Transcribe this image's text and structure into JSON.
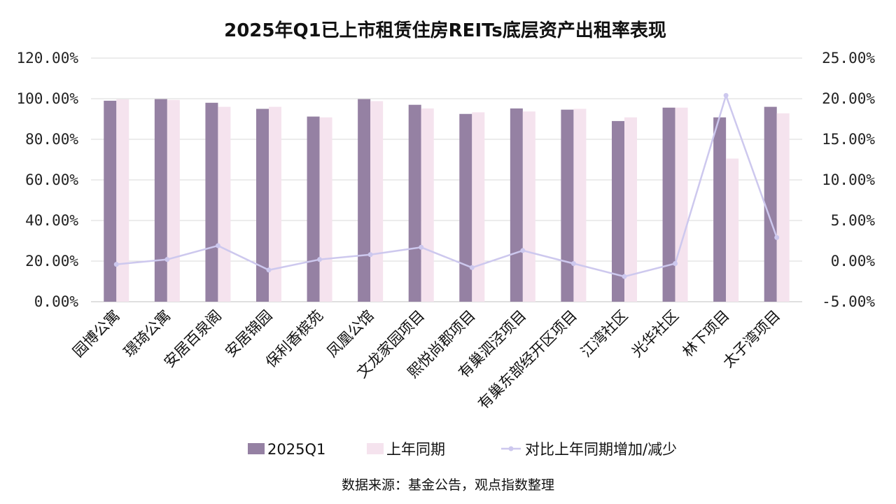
{
  "chart_data": {
    "type": "bar",
    "title": "2025年Q1已上市租赁住房REITs底层资产出租率表现",
    "categories": [
      "园博公寓",
      "璟琦公寓",
      "安居百泉阁",
      "安居锦园",
      "保利香槟苑",
      "凤凰公馆",
      "文龙家园项目",
      "熙悦尚郡项目",
      "有巢泗泾项目",
      "有巢东部经开区项目",
      "江湾社区",
      "光华社区",
      "林下项目",
      "太子湾项目"
    ],
    "series": [
      {
        "name": "2025Q1",
        "type": "bar",
        "axis": "left",
        "color": "#9581a3",
        "values": [
          99.0,
          99.8,
          98.0,
          95.0,
          91.2,
          99.8,
          97.0,
          92.5,
          95.2,
          94.6,
          89.0,
          95.6,
          90.8,
          96.0
        ]
      },
      {
        "name": "上年同期",
        "type": "bar",
        "axis": "left",
        "color": "#f5e3ee",
        "values": [
          99.7,
          99.4,
          96.0,
          96.0,
          90.8,
          98.8,
          95.2,
          93.3,
          93.7,
          95.0,
          90.8,
          95.6,
          70.5,
          92.8
        ]
      },
      {
        "name": "对比上年同期增加/减少",
        "type": "line",
        "axis": "right",
        "color": "#cdc8ee",
        "values": [
          -0.4,
          0.2,
          1.9,
          -1.1,
          0.2,
          0.8,
          1.7,
          -0.8,
          1.3,
          -0.3,
          -1.9,
          -0.3,
          20.4,
          2.9
        ]
      }
    ],
    "left_axis": {
      "ylim": [
        0,
        120
      ],
      "ticks": [
        "0.00%",
        "20.00%",
        "40.00%",
        "60.00%",
        "80.00%",
        "100.00%",
        "120.00%"
      ]
    },
    "right_axis": {
      "ylim": [
        -5,
        25
      ],
      "ticks": [
        "-5.00%",
        "0.00%",
        "5.00%",
        "10.00%",
        "15.00%",
        "20.00%",
        "25.00%"
      ]
    },
    "grid": true,
    "legend_position": "bottom",
    "source": "数据来源：基金公告，观点指数整理"
  }
}
